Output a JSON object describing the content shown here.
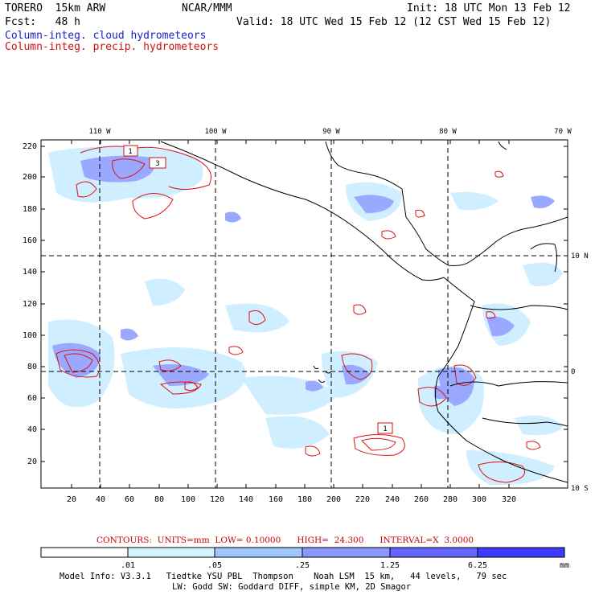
{
  "header": {
    "model": "TORERO  15km ARW",
    "org": "NCAR/MMM",
    "init": "Init: 18 UTC Mon 13 Feb 12",
    "fcst": "Fcst:   48 h",
    "valid": "Valid: 18 UTC Wed 15 Feb 12 (12 CST Wed 15 Feb 12)",
    "field1": "Column-integ. cloud hydrometeors",
    "field2": "Column-integ. precip. hydrometeors"
  },
  "axes": {
    "top_lon": [
      "110 W",
      "100 W",
      "90 W",
      "80 W",
      "70 W"
    ],
    "right_lat": [
      "10 N",
      "0",
      "10 S"
    ],
    "y_ticks": [
      "220",
      "200",
      "180",
      "160",
      "140",
      "120",
      "100",
      "80",
      "60",
      "40",
      "20"
    ],
    "x_ticks": [
      "20",
      "40",
      "60",
      "80",
      "100",
      "120",
      "140",
      "160",
      "180",
      "200",
      "220",
      "240",
      "260",
      "280",
      "300",
      "320"
    ]
  },
  "contour_labels": [
    "1",
    "3",
    "1"
  ],
  "contours_info": "CONTOURS:  UNITS=mm  LOW= 0.10000      HIGH=  24.300      INTERVAL=X  3.0000",
  "colorbar": {
    "labels": [
      ".01",
      ".05",
      ".25",
      "1.25",
      "6.25"
    ],
    "unit": "mm",
    "colors": [
      "#ffffff",
      "#d2f4ff",
      "#a0c8ff",
      "#8c96ff",
      "#6464ff",
      "#3c3cff",
      "#1e1ef0"
    ]
  },
  "footer": {
    "line1": "Model Info: V3.3.1   Tiedtke YSU PBL  Thompson    Noah LSM  15 km,   44 levels,   79 sec",
    "line2": "LW: Godd SW: Goddard DIFF, simple KM, 2D Smagor"
  }
}
